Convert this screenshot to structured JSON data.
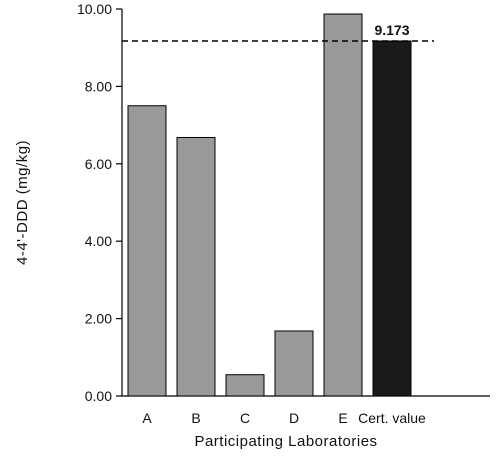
{
  "chart_data": {
    "type": "bar",
    "title": "",
    "xlabel": "Participating Laboratories",
    "ylabel": "4-4'-DDD (mg/kg)",
    "ylim": [
      0,
      10
    ],
    "yticks": [
      "0.00",
      "2.00",
      "4.00",
      "6.00",
      "8.00",
      "10.00"
    ],
    "categories": [
      "A",
      "B",
      "C",
      "D",
      "E",
      "Cert. value"
    ],
    "values": [
      7.5,
      6.68,
      0.55,
      1.68,
      9.87,
      9.173
    ],
    "bar_colors": [
      "#999999",
      "#999999",
      "#999999",
      "#999999",
      "#999999",
      "#1a1a1a"
    ],
    "reference_line": {
      "value": 9.173,
      "style": "dashed"
    },
    "annotation": {
      "text": "9.173",
      "category": "Cert. value"
    },
    "grid": false,
    "legend": "none"
  }
}
